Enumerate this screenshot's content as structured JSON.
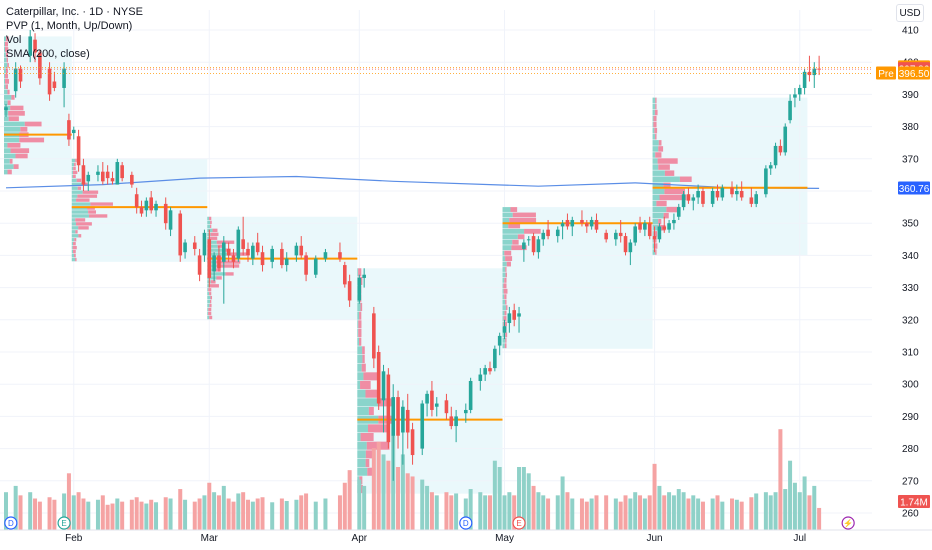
{
  "legend": {
    "title": "Caterpillar, Inc. · 1D · NYSE",
    "pvp": "PVP (1, Month, Up/Down)",
    "vol": "Vol",
    "sma": "SMA (200, close)"
  },
  "currency": "USD",
  "colors": {
    "up": "#26a69a",
    "down": "#ef5350",
    "vol_up": "#8fd1c8",
    "vol_down": "#f5a3a3",
    "sma": "#5b8ee6",
    "poc": "#ff9800",
    "profile_up": "#7fcfc5",
    "profile_down": "#f07a94",
    "zone": "#e6f7fa"
  },
  "price_tags": [
    {
      "label": "398.39",
      "value": 398.39,
      "color": "#ff9800",
      "prefix": ""
    },
    {
      "label": "397.86",
      "value": 397.86,
      "color": "#ef5350",
      "prefix": ""
    },
    {
      "label": "396.50",
      "value": 396.5,
      "color": "#ff9800",
      "prefix": "Pre"
    },
    {
      "label": "360.76",
      "value": 360.76,
      "color": "#2962ff",
      "prefix": ""
    },
    {
      "label": "1.74M",
      "value": 1.74,
      "color": "#ef5350",
      "prefix": "",
      "volume": true
    }
  ],
  "events": [
    {
      "letter": "D",
      "day": 1,
      "color": "#2962ff"
    },
    {
      "letter": "E",
      "day": 12,
      "color": "#26a69a"
    },
    {
      "letter": "D",
      "day": 95,
      "color": "#2962ff"
    },
    {
      "letter": "E",
      "day": 106,
      "color": "#ef5350"
    },
    {
      "letter": "⚡",
      "day": 174,
      "color": "#9c27b0"
    }
  ],
  "chart_data": {
    "type": "candlestick",
    "y_ticks": [
      260,
      270,
      280,
      290,
      300,
      310,
      320,
      330,
      340,
      350,
      360,
      370,
      380,
      390,
      400,
      410
    ],
    "ylim": [
      257,
      418
    ],
    "x_ticks": [
      {
        "label": "Feb",
        "day": 14
      },
      {
        "label": "Mar",
        "day": 42
      },
      {
        "label": "Apr",
        "day": 73
      },
      {
        "label": "May",
        "day": 103
      },
      {
        "label": "Jun",
        "day": 134
      },
      {
        "label": "Jul",
        "day": 164
      }
    ],
    "x_range_days": [
      0,
      186
    ],
    "sma200": [
      [
        0,
        361
      ],
      [
        20,
        362
      ],
      [
        40,
        364
      ],
      [
        60,
        364.5
      ],
      [
        80,
        363
      ],
      [
        100,
        362
      ],
      [
        110,
        361.5
      ],
      [
        130,
        362.5
      ],
      [
        150,
        361
      ],
      [
        168,
        360.8
      ]
    ],
    "monthly_profiles": [
      {
        "start": 0,
        "end": 14,
        "poc": 377.5,
        "low": 365,
        "high": 408
      },
      {
        "start": 14,
        "end": 42,
        "poc": 355,
        "low": 338,
        "high": 370
      },
      {
        "start": 42,
        "end": 73,
        "poc": 339,
        "low": 320,
        "high": 352
      },
      {
        "start": 73,
        "end": 103,
        "poc": 289,
        "low": 266,
        "high": 336
      },
      {
        "start": 103,
        "end": 134,
        "poc": 350,
        "low": 311,
        "high": 355
      },
      {
        "start": 134,
        "end": 166,
        "poc": 361,
        "low": 340,
        "high": 389
      }
    ],
    "candles": [
      [
        0,
        385,
        387,
        383,
        386,
        60
      ],
      [
        2,
        391,
        400,
        389,
        398,
        70
      ],
      [
        3,
        398,
        399,
        392,
        394,
        55
      ],
      [
        5,
        402,
        410,
        400,
        408,
        60
      ],
      [
        6,
        407,
        409,
        400,
        403,
        50
      ],
      [
        7,
        403,
        404,
        393,
        395,
        45
      ],
      [
        9,
        398,
        400,
        388,
        390,
        52
      ],
      [
        10,
        394,
        397,
        391,
        392,
        48
      ],
      [
        12,
        392,
        400,
        386,
        398,
        58
      ],
      [
        13,
        382,
        384,
        374,
        376,
        90
      ],
      [
        14,
        378,
        380,
        376,
        379,
        55
      ],
      [
        15,
        377,
        379,
        366,
        368,
        60
      ],
      [
        16,
        368,
        370,
        360,
        362,
        50
      ],
      [
        17,
        363,
        366,
        360,
        365,
        45
      ],
      [
        19,
        365,
        368,
        363,
        366,
        48
      ],
      [
        20,
        366,
        369,
        362,
        363,
        55
      ],
      [
        21,
        366,
        368,
        362,
        364,
        40
      ],
      [
        22,
        364,
        366,
        362,
        363,
        42
      ],
      [
        23,
        362,
        370,
        362,
        369,
        50
      ],
      [
        24,
        368,
        369,
        363,
        364,
        45
      ],
      [
        26,
        365,
        366,
        361,
        362,
        48
      ],
      [
        27,
        359,
        361,
        353,
        355,
        52
      ],
      [
        28,
        355,
        357,
        352,
        353,
        45
      ],
      [
        29,
        354,
        358,
        352,
        357,
        42
      ],
      [
        30,
        358,
        360,
        353,
        354,
        48
      ],
      [
        31,
        354,
        357,
        352,
        356,
        44
      ],
      [
        33,
        356,
        358,
        348,
        350,
        52
      ],
      [
        34,
        348,
        355,
        346,
        354,
        50
      ],
      [
        36,
        353,
        354,
        338,
        340,
        65
      ],
      [
        37,
        341,
        345,
        339,
        344,
        48
      ],
      [
        39,
        344,
        346,
        340,
        342,
        45
      ],
      [
        40,
        340,
        342,
        332,
        334,
        50
      ],
      [
        41,
        340,
        348,
        338,
        347,
        55
      ],
      [
        42,
        345,
        348,
        330,
        333,
        75
      ],
      [
        43,
        335,
        341,
        332,
        340,
        60
      ],
      [
        44,
        340,
        343,
        335,
        336,
        55
      ],
      [
        45,
        338,
        346,
        325,
        344,
        70
      ],
      [
        46,
        342,
        344,
        338,
        340,
        50
      ],
      [
        47,
        340,
        342,
        336,
        338,
        45
      ],
      [
        48,
        339,
        349,
        338,
        348,
        58
      ],
      [
        49,
        345,
        352,
        340,
        342,
        60
      ],
      [
        50,
        342,
        344,
        338,
        340,
        48
      ],
      [
        51,
        339,
        344,
        337,
        343,
        45
      ],
      [
        52,
        344,
        347,
        340,
        341,
        50
      ],
      [
        53,
        341,
        343,
        335,
        337,
        52
      ],
      [
        55,
        338,
        343,
        336,
        342,
        44
      ],
      [
        57,
        342,
        344,
        336,
        337,
        50
      ],
      [
        58,
        337,
        341,
        335,
        339,
        46
      ],
      [
        60,
        340,
        344,
        338,
        343,
        48
      ],
      [
        61,
        343,
        346,
        339,
        340,
        55
      ],
      [
        62,
        340,
        341,
        332,
        334,
        58
      ],
      [
        64,
        334,
        340,
        333,
        339,
        45
      ],
      [
        66,
        339,
        342,
        338,
        341,
        50
      ],
      [
        69,
        341,
        344,
        338,
        339,
        55
      ],
      [
        70,
        337,
        338,
        330,
        331,
        75
      ],
      [
        71,
        332,
        334,
        324,
        326,
        95
      ],
      [
        73,
        326,
        334,
        325,
        333,
        80
      ],
      [
        74,
        333,
        336,
        330,
        334,
        70
      ],
      [
        76,
        322,
        324,
        305,
        308,
        130
      ],
      [
        77,
        310,
        312,
        292,
        294,
        140
      ],
      [
        78,
        295,
        306,
        285,
        304,
        120
      ],
      [
        79,
        303,
        305,
        280,
        282,
        110
      ],
      [
        80,
        284,
        300,
        270,
        296,
        150
      ],
      [
        81,
        296,
        298,
        280,
        284,
        100
      ],
      [
        82,
        285,
        295,
        275,
        293,
        120
      ],
      [
        83,
        292,
        297,
        280,
        285,
        90
      ],
      [
        84,
        286,
        288,
        275,
        278,
        85
      ],
      [
        86,
        280,
        295,
        278,
        294,
        80
      ],
      [
        87,
        294,
        298,
        290,
        297,
        70
      ],
      [
        88,
        298,
        301,
        290,
        292,
        60
      ],
      [
        89,
        293,
        296,
        290,
        294,
        55
      ],
      [
        91,
        295,
        297,
        289,
        291,
        60
      ],
      [
        92,
        290,
        293,
        286,
        287,
        55
      ],
      [
        93,
        287,
        292,
        282,
        290,
        58
      ],
      [
        95,
        291,
        294,
        288,
        292,
        50
      ],
      [
        96,
        292,
        302,
        291,
        301,
        65
      ],
      [
        98,
        301,
        305,
        298,
        303,
        60
      ],
      [
        99,
        303,
        306,
        301,
        305,
        55
      ],
      [
        100,
        305,
        307,
        303,
        304,
        55
      ],
      [
        101,
        305,
        312,
        304,
        311,
        110
      ],
      [
        102,
        312,
        316,
        309,
        315,
        100
      ],
      [
        103,
        316,
        320,
        314,
        318,
        55
      ],
      [
        104,
        319,
        324,
        316,
        322,
        60
      ],
      [
        105,
        323,
        325,
        318,
        320,
        55
      ],
      [
        106,
        321,
        324,
        316,
        322,
        100
      ],
      [
        107,
        342,
        345,
        338,
        344,
        100
      ],
      [
        108,
        345,
        346,
        343,
        345,
        90
      ],
      [
        109,
        346,
        347,
        340,
        341,
        70
      ],
      [
        110,
        341,
        346,
        339,
        345,
        60
      ],
      [
        111,
        345,
        348,
        343,
        347,
        55
      ],
      [
        112,
        348,
        351,
        345,
        346,
        50
      ],
      [
        114,
        346,
        349,
        344,
        348,
        55
      ],
      [
        115,
        349,
        351,
        345,
        350,
        85
      ],
      [
        116,
        351,
        353,
        348,
        349,
        60
      ],
      [
        117,
        349,
        352,
        346,
        351,
        50
      ],
      [
        119,
        351,
        354,
        349,
        350,
        50
      ],
      [
        120,
        350,
        351,
        347,
        349,
        45
      ],
      [
        121,
        349,
        352,
        348,
        351,
        50
      ],
      [
        122,
        351,
        353,
        347,
        348,
        55
      ],
      [
        124,
        347,
        348,
        344,
        345,
        55
      ],
      [
        126,
        345,
        348,
        343,
        347,
        50
      ],
      [
        127,
        347,
        351,
        344,
        346,
        45
      ],
      [
        128,
        346,
        347,
        340,
        341,
        55
      ],
      [
        129,
        341,
        345,
        337,
        344,
        50
      ],
      [
        130,
        344,
        350,
        343,
        349,
        60
      ],
      [
        131,
        350,
        352,
        347,
        348,
        55
      ],
      [
        132,
        348,
        351,
        346,
        350,
        50
      ],
      [
        133,
        350,
        352,
        345,
        346,
        55
      ],
      [
        134,
        346,
        349,
        341,
        345,
        105
      ],
      [
        135,
        345,
        350,
        344,
        349,
        70
      ],
      [
        136,
        349,
        352,
        347,
        348,
        55
      ],
      [
        137,
        348,
        351,
        347,
        350,
        60
      ],
      [
        138,
        350,
        353,
        348,
        351,
        55
      ],
      [
        139,
        352,
        356,
        351,
        355,
        65
      ],
      [
        140,
        355,
        360,
        354,
        359,
        60
      ],
      [
        141,
        359,
        361,
        356,
        357,
        50
      ],
      [
        142,
        357,
        359,
        354,
        358,
        55
      ],
      [
        143,
        358,
        362,
        356,
        360,
        50
      ],
      [
        144,
        360,
        361,
        355,
        356,
        45
      ],
      [
        146,
        356,
        361,
        355,
        360,
        50
      ],
      [
        147,
        360,
        362,
        357,
        358,
        55
      ],
      [
        148,
        358,
        362,
        357,
        361,
        45
      ],
      [
        150,
        361,
        363,
        358,
        359,
        50
      ],
      [
        151,
        359,
        362,
        357,
        360,
        48
      ],
      [
        152,
        360,
        363,
        357,
        358,
        45
      ],
      [
        154,
        358,
        361,
        355,
        356,
        52
      ],
      [
        155,
        356,
        360,
        355,
        359,
        58
      ],
      [
        157,
        359,
        368,
        358,
        367,
        60
      ],
      [
        158,
        367,
        369,
        365,
        368,
        55
      ],
      [
        159,
        368,
        375,
        367,
        374,
        60
      ],
      [
        160,
        374,
        376,
        371,
        372,
        160
      ],
      [
        161,
        372,
        381,
        371,
        380,
        65
      ],
      [
        162,
        382,
        390,
        381,
        388,
        110
      ],
      [
        163,
        389,
        392,
        386,
        390,
        75
      ],
      [
        164,
        390,
        393,
        388,
        392,
        60
      ],
      [
        165,
        392,
        398,
        390,
        397,
        85
      ],
      [
        166,
        397,
        402,
        394,
        396,
        55
      ],
      [
        167,
        396,
        400,
        392,
        398,
        70
      ],
      [
        168,
        398,
        402,
        396,
        397.86,
        35
      ]
    ]
  }
}
